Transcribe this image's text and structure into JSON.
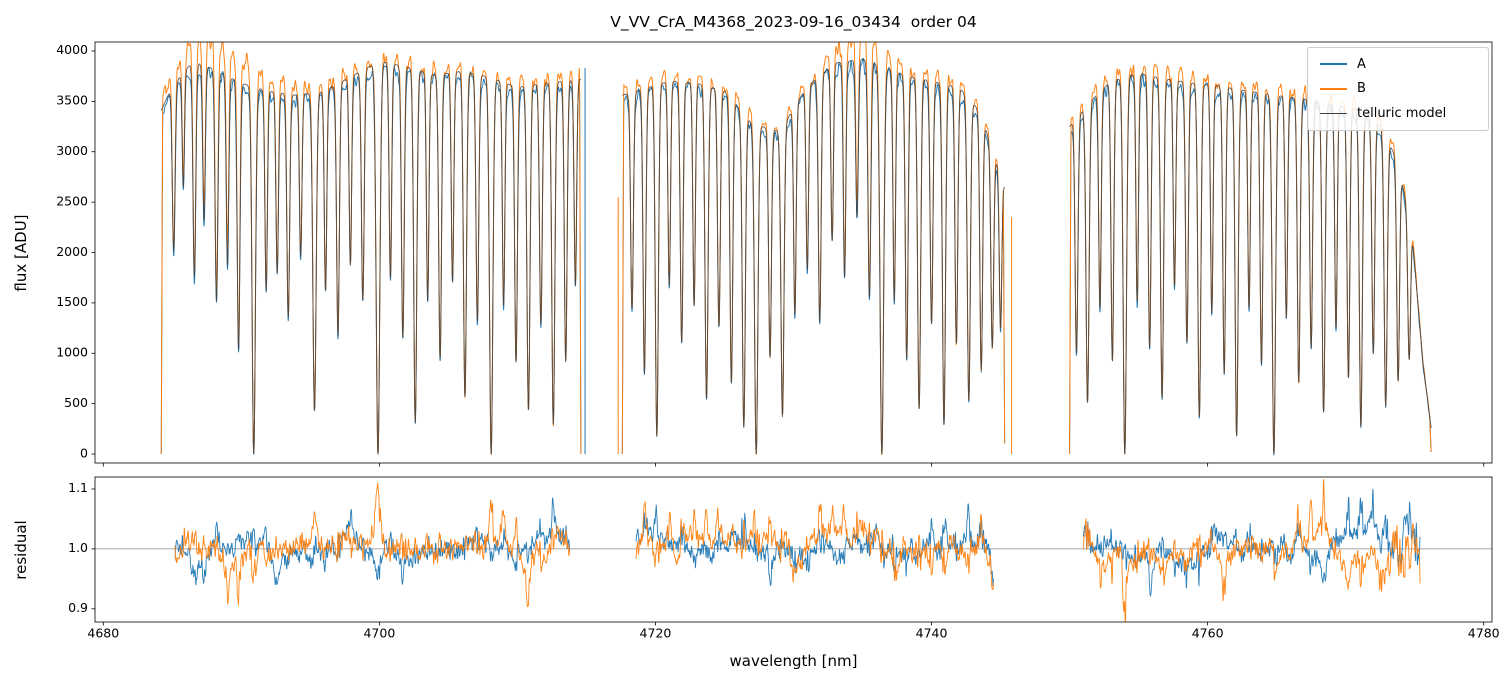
{
  "chart_data": {
    "type": "line",
    "title": "V_VV_CrA_M4368_2023-09-16_03434  order 04",
    "xlabel": "wavelength [nm]",
    "xlim": [
      4679.4,
      4780.6
    ],
    "xticks": [
      4680,
      4700,
      4720,
      4740,
      4760,
      4780
    ],
    "grid": false,
    "legend_position": "upper right",
    "panels": [
      {
        "id": "flux",
        "ylabel": "flux [ADU]",
        "ylim": [
          -89,
          4089
        ],
        "yticks": [
          0,
          500,
          1000,
          1500,
          2000,
          2500,
          3000,
          3500,
          4000
        ]
      },
      {
        "id": "residual",
        "ylabel": "residual",
        "ylim": [
          0.878,
          1.12
        ],
        "yticks": [
          0.9,
          1.0,
          1.1
        ],
        "hline": 1.0
      }
    ],
    "legend": [
      {
        "label": "A",
        "color": "#1f77b4"
      },
      {
        "label": "B",
        "color": "#ff7f0e"
      },
      {
        "label": "telluric model",
        "color": "#404040"
      }
    ],
    "segments": [
      [
        4684.2,
        4714.6
      ],
      [
        4717.6,
        4745.3
      ],
      [
        4750.0,
        4776.2
      ]
    ],
    "scales": {
      "A": 0.985,
      "B": 1.015
    },
    "continuum": [
      [
        4684.0,
        3350
      ],
      [
        4685.0,
        3650
      ],
      [
        4686.5,
        3900
      ],
      [
        4688.0,
        3820
      ],
      [
        4690.0,
        3680
      ],
      [
        4692.0,
        3600
      ],
      [
        4694.0,
        3560
      ],
      [
        4696.0,
        3600
      ],
      [
        4698.0,
        3750
      ],
      [
        4700.0,
        3900
      ],
      [
        4702.0,
        3840
      ],
      [
        4704.0,
        3760
      ],
      [
        4706.0,
        3800
      ],
      [
        4708.0,
        3740
      ],
      [
        4710.0,
        3640
      ],
      [
        4712.0,
        3680
      ],
      [
        4714.6,
        3720
      ],
      [
        4716.0,
        3650
      ],
      [
        4717.6,
        3560
      ],
      [
        4719.0,
        3620
      ],
      [
        4721.0,
        3700
      ],
      [
        4723.0,
        3680
      ],
      [
        4725.0,
        3600
      ],
      [
        4727.0,
        3280
      ],
      [
        4729.0,
        3200
      ],
      [
        4731.0,
        3650
      ],
      [
        4733.0,
        3880
      ],
      [
        4735.0,
        3920
      ],
      [
        4736.5,
        3850
      ],
      [
        4738.0,
        3760
      ],
      [
        4740.0,
        3700
      ],
      [
        4742.0,
        3640
      ],
      [
        4743.5,
        3400
      ],
      [
        4745.3,
        2650
      ],
      [
        4747.5,
        2900
      ],
      [
        4750.0,
        3250
      ],
      [
        4751.5,
        3500
      ],
      [
        4753.0,
        3700
      ],
      [
        4755.0,
        3780
      ],
      [
        4757.0,
        3720
      ],
      [
        4759.0,
        3680
      ],
      [
        4761.0,
        3650
      ],
      [
        4763.0,
        3600
      ],
      [
        4765.0,
        3560
      ],
      [
        4767.0,
        3520
      ],
      [
        4769.0,
        3460
      ],
      [
        4771.0,
        3420
      ],
      [
        4772.5,
        3260
      ],
      [
        4773.8,
        2900
      ],
      [
        4774.8,
        2200
      ],
      [
        4775.6,
        900
      ],
      [
        4776.2,
        250
      ]
    ],
    "absorption_lines": [
      [
        4685.1,
        0.45,
        0.1
      ],
      [
        4685.8,
        0.3,
        0.08
      ],
      [
        4686.6,
        0.55,
        0.1
      ],
      [
        4687.3,
        0.4,
        0.09
      ],
      [
        4688.2,
        0.6,
        0.1
      ],
      [
        4689.0,
        0.5,
        0.09
      ],
      [
        4689.8,
        0.72,
        0.1
      ],
      [
        4690.9,
        1.0,
        0.12
      ],
      [
        4691.8,
        0.55,
        0.09
      ],
      [
        4692.6,
        0.5,
        0.09
      ],
      [
        4693.4,
        0.62,
        0.1
      ],
      [
        4694.3,
        0.45,
        0.09
      ],
      [
        4695.3,
        0.88,
        0.12
      ],
      [
        4696.1,
        0.55,
        0.09
      ],
      [
        4697.0,
        0.68,
        0.1
      ],
      [
        4697.9,
        0.5,
        0.09
      ],
      [
        4698.8,
        0.6,
        0.1
      ],
      [
        4699.9,
        1.0,
        0.13
      ],
      [
        4700.8,
        0.55,
        0.09
      ],
      [
        4701.7,
        0.7,
        0.1
      ],
      [
        4702.6,
        0.92,
        0.11
      ],
      [
        4703.5,
        0.6,
        0.09
      ],
      [
        4704.4,
        0.75,
        0.1
      ],
      [
        4705.3,
        0.55,
        0.09
      ],
      [
        4706.2,
        0.85,
        0.11
      ],
      [
        4707.1,
        0.65,
        0.1
      ],
      [
        4708.1,
        1.0,
        0.12
      ],
      [
        4709.0,
        0.6,
        0.09
      ],
      [
        4709.9,
        0.75,
        0.1
      ],
      [
        4710.8,
        0.88,
        0.11
      ],
      [
        4711.7,
        0.65,
        0.1
      ],
      [
        4712.6,
        0.92,
        0.11
      ],
      [
        4713.5,
        0.75,
        0.1
      ],
      [
        4714.2,
        0.55,
        0.09
      ],
      [
        4718.3,
        0.6,
        0.1
      ],
      [
        4719.2,
        0.78,
        0.1
      ],
      [
        4720.1,
        0.95,
        0.11
      ],
      [
        4721.0,
        0.55,
        0.09
      ],
      [
        4721.9,
        0.7,
        0.1
      ],
      [
        4722.8,
        0.6,
        0.09
      ],
      [
        4723.7,
        0.85,
        0.11
      ],
      [
        4724.6,
        0.65,
        0.1
      ],
      [
        4725.5,
        0.8,
        0.1
      ],
      [
        4726.4,
        0.92,
        0.11
      ],
      [
        4727.3,
        1.0,
        0.12
      ],
      [
        4728.3,
        0.7,
        0.1
      ],
      [
        4729.2,
        0.88,
        0.11
      ],
      [
        4730.1,
        0.6,
        0.09
      ],
      [
        4731.0,
        0.5,
        0.09
      ],
      [
        4731.9,
        0.65,
        0.1
      ],
      [
        4732.8,
        0.45,
        0.09
      ],
      [
        4733.7,
        0.55,
        0.09
      ],
      [
        4734.6,
        0.4,
        0.09
      ],
      [
        4735.5,
        0.6,
        0.1
      ],
      [
        4736.4,
        1.0,
        0.13
      ],
      [
        4737.3,
        0.6,
        0.09
      ],
      [
        4738.2,
        0.75,
        0.1
      ],
      [
        4739.1,
        0.88,
        0.11
      ],
      [
        4740.0,
        0.65,
        0.1
      ],
      [
        4740.9,
        0.92,
        0.11
      ],
      [
        4741.8,
        0.7,
        0.1
      ],
      [
        4742.7,
        0.85,
        0.11
      ],
      [
        4743.6,
        0.75,
        0.1
      ],
      [
        4744.4,
        0.65,
        0.1
      ],
      [
        4745.0,
        0.55,
        0.09
      ],
      [
        4750.5,
        0.7,
        0.1
      ],
      [
        4751.3,
        0.85,
        0.11
      ],
      [
        4752.2,
        0.6,
        0.09
      ],
      [
        4753.1,
        0.75,
        0.1
      ],
      [
        4754.0,
        1.0,
        0.12
      ],
      [
        4754.9,
        0.6,
        0.09
      ],
      [
        4755.8,
        0.72,
        0.1
      ],
      [
        4756.7,
        0.85,
        0.11
      ],
      [
        4757.6,
        0.55,
        0.09
      ],
      [
        4758.5,
        0.7,
        0.1
      ],
      [
        4759.4,
        0.9,
        0.11
      ],
      [
        4760.3,
        0.62,
        0.09
      ],
      [
        4761.2,
        0.78,
        0.1
      ],
      [
        4762.1,
        0.95,
        0.11
      ],
      [
        4763.0,
        0.6,
        0.09
      ],
      [
        4763.9,
        0.75,
        0.1
      ],
      [
        4764.8,
        1.0,
        0.12
      ],
      [
        4765.7,
        0.62,
        0.09
      ],
      [
        4766.6,
        0.8,
        0.1
      ],
      [
        4767.5,
        0.7,
        0.1
      ],
      [
        4768.4,
        0.88,
        0.11
      ],
      [
        4769.3,
        0.64,
        0.09
      ],
      [
        4770.2,
        0.78,
        0.1
      ],
      [
        4771.1,
        0.92,
        0.11
      ],
      [
        4772.0,
        0.7,
        0.1
      ],
      [
        4772.9,
        0.85,
        0.11
      ],
      [
        4773.8,
        0.75,
        0.1
      ],
      [
        4774.6,
        0.6,
        0.1
      ]
    ],
    "b_bumps": [
      [
        4688.5,
        2.5,
        0.06
      ],
      [
        4735.0,
        1.5,
        0.045
      ]
    ],
    "extra_spikes": [
      [
        4714.9,
        3830,
        "A"
      ],
      [
        4717.3,
        2550,
        "B"
      ],
      [
        4745.8,
        2350,
        "B"
      ]
    ],
    "noise": {
      "flux_amp_A": 0.02,
      "flux_amp_B": 0.022,
      "floor": 14,
      "res_base": 0.016,
      "res_slow": 0.02,
      "res_high": 0.013,
      "line_boost": 1.8,
      "edge_boost": 0.8,
      "end_boost": 2.2,
      "inset_start": 1.0,
      "inset_end": 0.8
    }
  }
}
